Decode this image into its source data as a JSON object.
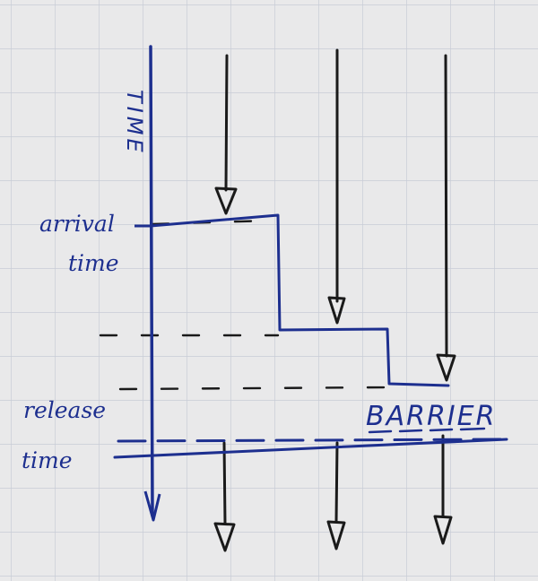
{
  "labels": {
    "time_axis": "TIME",
    "arrival_line1": "arrival",
    "arrival_line2": "time",
    "release_line1": "release",
    "release_line2": "time",
    "barrier": "BARRIER"
  },
  "colors": {
    "paper": "#e9e9ea",
    "grid": "#c8ccd6",
    "ink_black": "#1a1a1a",
    "ink_blue": "#1d2f8f"
  }
}
